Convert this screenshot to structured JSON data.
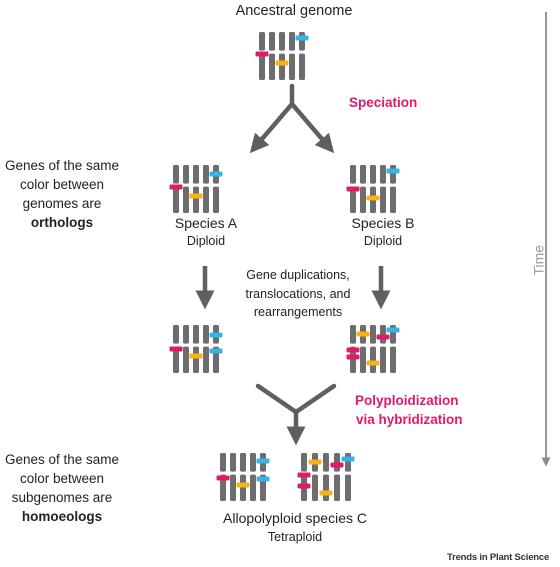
{
  "titles": {
    "ancestral": "Ancestral genome",
    "species_a": "Species A",
    "species_a_ploidy": "Diploid",
    "species_b": "Species B",
    "species_b_ploidy": "Diploid",
    "species_c": "Allopolyploid species C",
    "species_c_ploidy": "Tetraploid"
  },
  "events": {
    "speciation": "Speciation",
    "gene_changes": [
      "Gene duplications,",
      "translocations, and",
      "rearrangements"
    ],
    "polyploidization": [
      "Polyploidization",
      "via hybridization"
    ]
  },
  "notes": {
    "orthologs": [
      "Genes of the same",
      "color between",
      "genomes are"
    ],
    "orthologs_term": "orthologs",
    "homoeologs": [
      "Genes of the same",
      "color between",
      "subgenomes are"
    ],
    "homoeologs_term": "homoeologs"
  },
  "time_label": "Time",
  "footer": "Trends in Plant Science",
  "colors": {
    "chromosome": "#6d6d6d",
    "arrow": "#5f5f5f",
    "time_arrow": "#8a8a8a",
    "gene_pink": "#e0196b",
    "gene_yellow": "#f5b21b",
    "gene_blue": "#35b4e5",
    "accent": "#e0196b"
  }
}
